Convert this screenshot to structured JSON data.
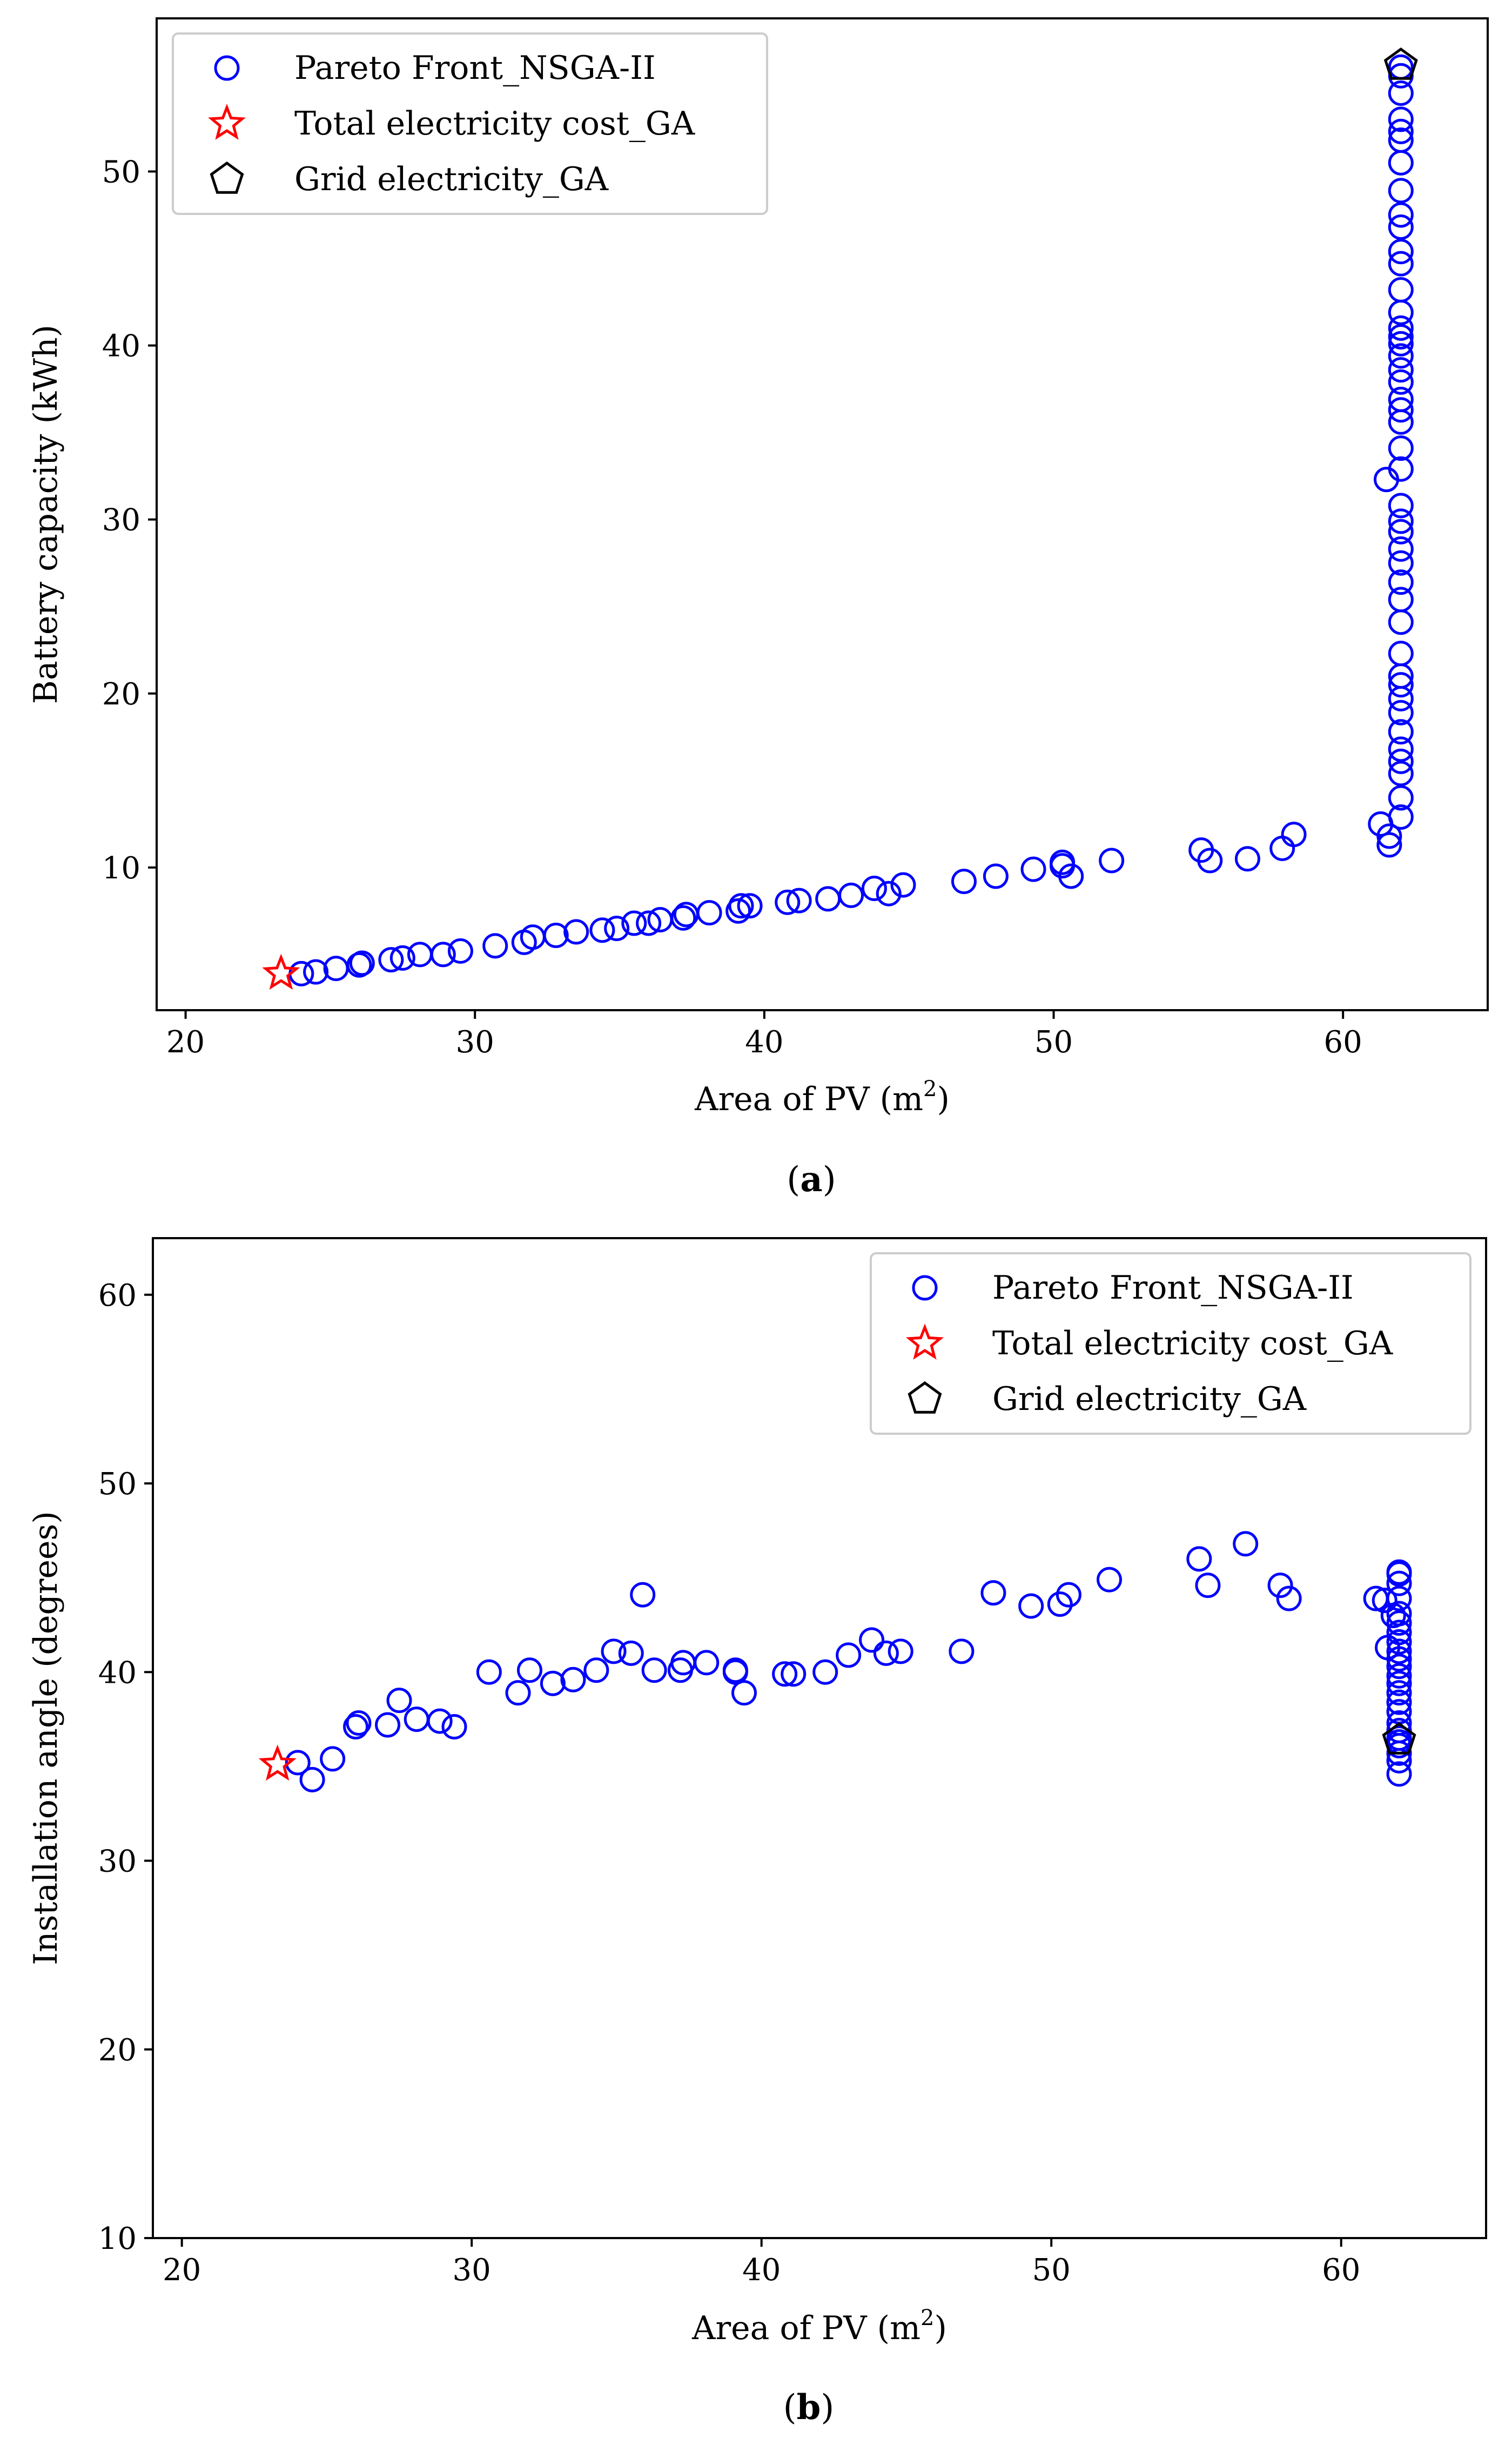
{
  "colors": {
    "pareto": "#0000ff",
    "cost": "#ff0000",
    "grid": "#000000"
  },
  "chart_data": [
    {
      "type": "scatter",
      "caption_open": "(",
      "caption_letter": "a",
      "caption_close": ")",
      "xlabel_main": "Area of PV (m",
      "xlabel_sup": "2",
      "xlabel_end": ")",
      "ylabel": "Battery capacity (kWh)",
      "xlim": [
        19,
        65
      ],
      "ylim": [
        1.8,
        58.8
      ],
      "xticks": [
        20,
        30,
        40,
        50,
        60
      ],
      "yticks": [
        10,
        20,
        30,
        40,
        50
      ],
      "legend_position": "upper-left",
      "legend": [
        {
          "label": "Pareto Front_NSGA-II",
          "marker": "circle"
        },
        {
          "label": "Total electricity cost_GA",
          "marker": "star"
        },
        {
          "label": "Grid electricity_GA",
          "marker": "pentagon"
        }
      ],
      "series": [
        {
          "name": "Pareto Front_NSGA-II",
          "marker": "circle",
          "points": [
            [
              24.0,
              3.9
            ],
            [
              24.5,
              4.0
            ],
            [
              25.2,
              4.2
            ],
            [
              26.0,
              4.4
            ],
            [
              26.1,
              4.5
            ],
            [
              27.1,
              4.7
            ],
            [
              27.5,
              4.8
            ],
            [
              28.1,
              5.0
            ],
            [
              28.9,
              5.0
            ],
            [
              29.5,
              5.2
            ],
            [
              30.7,
              5.5
            ],
            [
              31.7,
              5.7
            ],
            [
              32.0,
              6.0
            ],
            [
              32.8,
              6.1
            ],
            [
              33.5,
              6.3
            ],
            [
              34.4,
              6.4
            ],
            [
              34.9,
              6.5
            ],
            [
              35.5,
              6.8
            ],
            [
              36.0,
              6.8
            ],
            [
              36.4,
              7.0
            ],
            [
              37.2,
              7.1
            ],
            [
              37.3,
              7.3
            ],
            [
              38.1,
              7.4
            ],
            [
              39.1,
              7.5
            ],
            [
              39.2,
              7.8
            ],
            [
              39.5,
              7.8
            ],
            [
              40.8,
              8.0
            ],
            [
              41.2,
              8.1
            ],
            [
              42.2,
              8.2
            ],
            [
              43.0,
              8.4
            ],
            [
              43.8,
              8.8
            ],
            [
              44.3,
              8.5
            ],
            [
              44.8,
              9.0
            ],
            [
              46.9,
              9.2
            ],
            [
              48.0,
              9.5
            ],
            [
              49.3,
              9.9
            ],
            [
              50.3,
              10.1
            ],
            [
              50.3,
              10.3
            ],
            [
              50.6,
              9.5
            ],
            [
              52.0,
              10.4
            ],
            [
              55.1,
              11.0
            ],
            [
              55.4,
              10.4
            ],
            [
              56.7,
              10.5
            ],
            [
              57.9,
              11.1
            ],
            [
              58.3,
              11.9
            ],
            [
              61.3,
              12.5
            ],
            [
              61.5,
              32.3
            ],
            [
              61.6,
              11.8
            ],
            [
              61.6,
              11.3
            ],
            [
              62.0,
              12.9
            ],
            [
              62.0,
              14.0
            ],
            [
              62.0,
              15.4
            ],
            [
              62.0,
              16.1
            ],
            [
              62.0,
              16.8
            ],
            [
              62.0,
              17.8
            ],
            [
              62.0,
              18.9
            ],
            [
              62.0,
              19.7
            ],
            [
              62.0,
              20.5
            ],
            [
              62.0,
              21.0
            ],
            [
              62.0,
              22.3
            ],
            [
              62.0,
              24.1
            ],
            [
              62.0,
              25.4
            ],
            [
              62.0,
              26.4
            ],
            [
              62.0,
              27.5
            ],
            [
              62.0,
              28.3
            ],
            [
              62.0,
              29.3
            ],
            [
              62.0,
              29.9
            ],
            [
              62.0,
              30.8
            ],
            [
              62.0,
              32.9
            ],
            [
              62.0,
              34.1
            ],
            [
              62.0,
              35.6
            ],
            [
              62.0,
              36.3
            ],
            [
              62.0,
              36.9
            ],
            [
              62.0,
              37.9
            ],
            [
              62.0,
              38.6
            ],
            [
              62.0,
              39.4
            ],
            [
              62.0,
              40.1
            ],
            [
              62.0,
              40.5
            ],
            [
              62.0,
              41.0
            ],
            [
              62.0,
              41.9
            ],
            [
              62.0,
              43.2
            ],
            [
              62.0,
              44.7
            ],
            [
              62.0,
              45.4
            ],
            [
              62.0,
              46.8
            ],
            [
              62.0,
              47.5
            ],
            [
              62.0,
              48.9
            ],
            [
              62.0,
              50.5
            ],
            [
              62.0,
              51.8
            ],
            [
              62.0,
              52.3
            ],
            [
              62.0,
              53.0
            ],
            [
              62.0,
              54.5
            ],
            [
              62.0,
              55.5
            ],
            [
              62.0,
              56.0
            ]
          ]
        },
        {
          "name": "Total electricity cost_GA",
          "marker": "star",
          "points": [
            [
              23.3,
              3.9
            ]
          ]
        },
        {
          "name": "Grid electricity_GA",
          "marker": "pentagon",
          "points": [
            [
              62.0,
              56.1
            ]
          ]
        }
      ]
    },
    {
      "type": "scatter",
      "caption_open": "(",
      "caption_letter": "b",
      "caption_close": ")",
      "xlabel_main": "Area of PV (m",
      "xlabel_sup": "2",
      "xlabel_end": ")",
      "ylabel": "Installation angle (degrees)",
      "xlim": [
        19,
        65
      ],
      "ylim": [
        10,
        63
      ],
      "xticks": [
        20,
        30,
        40,
        50,
        60
      ],
      "yticks": [
        10,
        20,
        30,
        40,
        50,
        60
      ],
      "legend_position": "upper-right",
      "legend": [
        {
          "label": "Pareto Front_NSGA-II",
          "marker": "circle"
        },
        {
          "label": "Total electricity cost_GA",
          "marker": "star"
        },
        {
          "label": "Grid electricity_GA",
          "marker": "pentagon"
        }
      ],
      "series": [
        {
          "name": "Pareto Front_NSGA-II",
          "marker": "circle",
          "points": [
            [
              24.0,
              35.2
            ],
            [
              24.5,
              34.3
            ],
            [
              25.2,
              35.4
            ],
            [
              26.0,
              37.1
            ],
            [
              26.1,
              37.3
            ],
            [
              27.1,
              37.2
            ],
            [
              27.5,
              38.5
            ],
            [
              28.1,
              37.5
            ],
            [
              28.9,
              37.4
            ],
            [
              29.4,
              37.1
            ],
            [
              30.6,
              40.0
            ],
            [
              31.6,
              38.9
            ],
            [
              32.0,
              40.1
            ],
            [
              32.8,
              39.4
            ],
            [
              33.5,
              39.6
            ],
            [
              34.3,
              40.1
            ],
            [
              34.9,
              41.1
            ],
            [
              35.5,
              41.0
            ],
            [
              35.9,
              44.1
            ],
            [
              36.3,
              40.1
            ],
            [
              37.2,
              40.1
            ],
            [
              37.3,
              40.5
            ],
            [
              38.1,
              40.5
            ],
            [
              39.1,
              40.0
            ],
            [
              39.1,
              40.1
            ],
            [
              39.4,
              38.9
            ],
            [
              40.8,
              39.9
            ],
            [
              41.1,
              39.9
            ],
            [
              42.2,
              40.0
            ],
            [
              43.0,
              40.9
            ],
            [
              43.8,
              41.7
            ],
            [
              44.3,
              41.0
            ],
            [
              44.8,
              41.1
            ],
            [
              46.9,
              41.1
            ],
            [
              48.0,
              44.2
            ],
            [
              49.3,
              43.5
            ],
            [
              50.3,
              43.6
            ],
            [
              50.6,
              44.1
            ],
            [
              52.0,
              44.9
            ],
            [
              55.1,
              46.0
            ],
            [
              55.4,
              44.6
            ],
            [
              56.7,
              46.8
            ],
            [
              57.9,
              44.6
            ],
            [
              58.2,
              43.9
            ],
            [
              61.2,
              43.9
            ],
            [
              61.5,
              43.8
            ],
            [
              61.6,
              41.3
            ],
            [
              61.8,
              43.0
            ],
            [
              62.0,
              45.3
            ],
            [
              62.0,
              45.2
            ],
            [
              62.0,
              44.7
            ],
            [
              62.0,
              43.9
            ],
            [
              62.0,
              43.1
            ],
            [
              62.0,
              42.6
            ],
            [
              62.0,
              42.1
            ],
            [
              62.0,
              41.6
            ],
            [
              62.0,
              41.1
            ],
            [
              62.0,
              40.7
            ],
            [
              62.0,
              40.3
            ],
            [
              62.0,
              39.8
            ],
            [
              62.0,
              39.4
            ],
            [
              62.0,
              38.9
            ],
            [
              62.0,
              38.4
            ],
            [
              62.0,
              37.9
            ],
            [
              62.0,
              37.3
            ],
            [
              62.0,
              36.9
            ],
            [
              62.0,
              36.5
            ],
            [
              62.0,
              36.1
            ],
            [
              62.0,
              35.7
            ],
            [
              62.0,
              35.3
            ],
            [
              62.0,
              34.6
            ],
            [
              62.0,
              36.3
            ]
          ]
        },
        {
          "name": "Total electricity cost_GA",
          "marker": "star",
          "points": [
            [
              23.3,
              35.1
            ]
          ]
        },
        {
          "name": "Grid electricity_GA",
          "marker": "pentagon",
          "points": [
            [
              62.0,
              36.4
            ]
          ]
        }
      ]
    }
  ]
}
